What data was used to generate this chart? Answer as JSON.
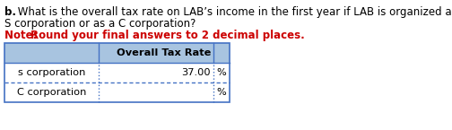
{
  "line1_bold": "b.",
  "line1_rest": " What is the overall tax rate on LAB’s income in the first year if LAB is organized as an",
  "line2": "S corporation or as a C corporation?",
  "note_bold": "Note: ",
  "note_rest": "Round your final answers to 2 decimal places.",
  "header": "Overall Tax Rate",
  "rows": [
    "s corporation",
    "C corporation"
  ],
  "values": [
    "37.00",
    ""
  ],
  "percent_sign": "%",
  "header_bg": "#a8c4e0",
  "border_color": "#4472c4",
  "text_color": "#000000",
  "note_color": "#cc0000",
  "font_size_title": 8.5,
  "font_size_note": 8.5,
  "font_size_table": 8.2
}
